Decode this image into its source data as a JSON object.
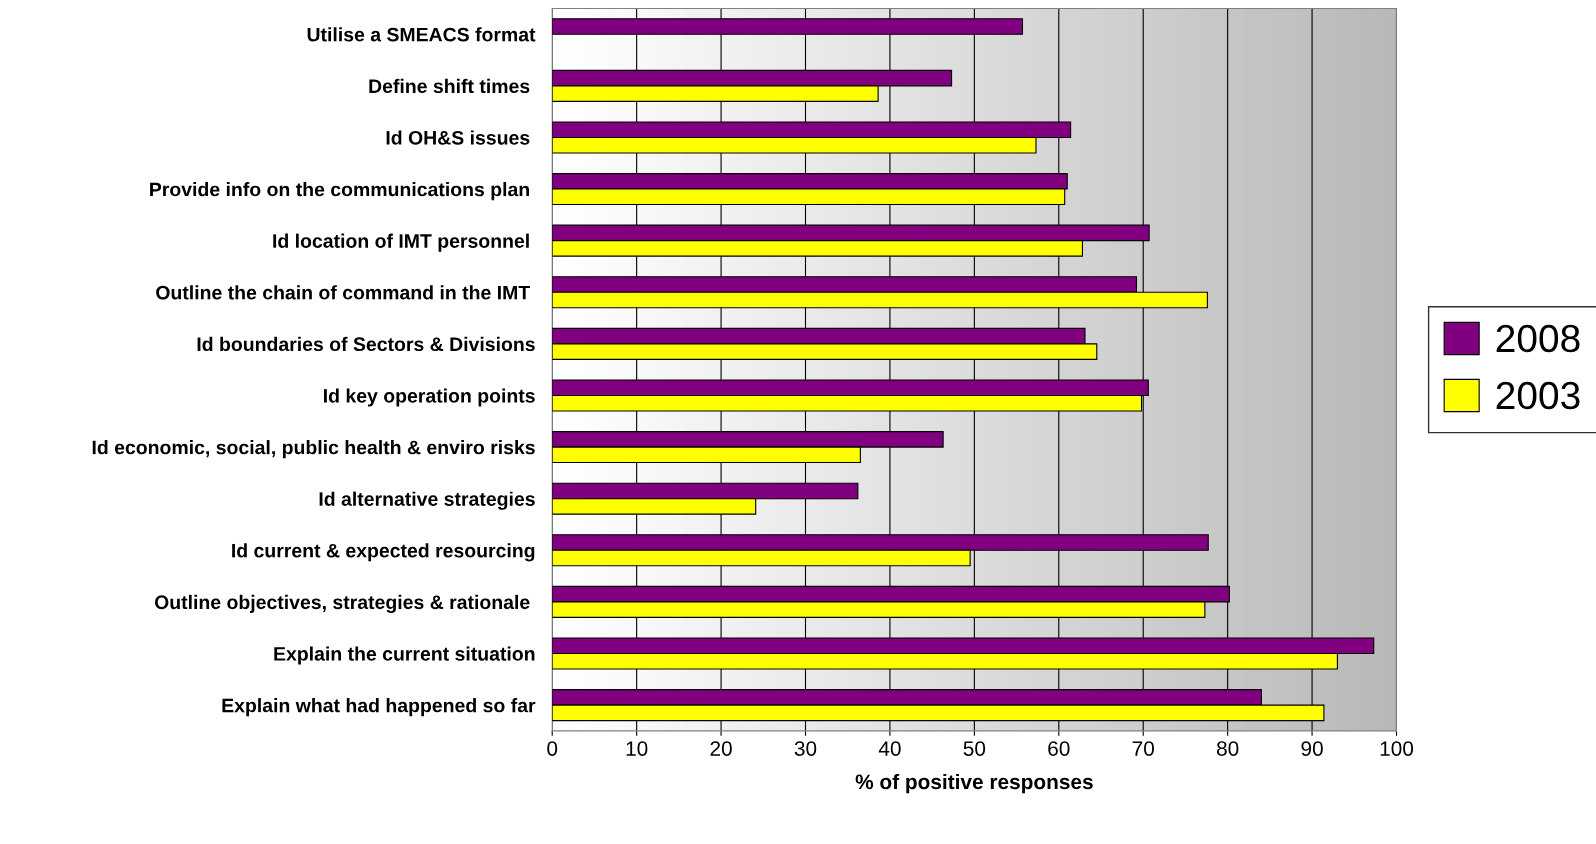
{
  "chart_data": {
    "type": "bar",
    "orientation": "horizontal",
    "xlabel": "% of positive responses",
    "categories": [
      "Utilise a SMEACS format",
      "Define shift times ",
      "Id OH&S issues ",
      "Provide info on the communications plan ",
      "Id location of IMT personnel ",
      "Outline the chain of command in the IMT ",
      "Id boundaries of Sectors & Divisions",
      "Id key operation points",
      "Id economic, social, public health & enviro risks",
      "Id alternative strategies",
      "Id current & expected resourcing",
      "Outline objectives, strategies & rationale ",
      "Explain the current situation",
      "Explain what had happened so far"
    ],
    "series": [
      {
        "name": "2008",
        "color": "#800080",
        "values": [
          55.7,
          47.3,
          61.4,
          61.0,
          70.7,
          69.2,
          63.1,
          70.6,
          46.3,
          36.2,
          77.7,
          80.2,
          97.3,
          84.0
        ]
      },
      {
        "name": "2003",
        "color": "#ffff00",
        "values": [
          null,
          38.6,
          57.3,
          60.7,
          62.8,
          77.6,
          64.5,
          69.8,
          36.5,
          24.1,
          49.5,
          77.3,
          93.0,
          91.4
        ]
      }
    ],
    "xlim": [
      0,
      100
    ],
    "xticks": [
      0,
      10,
      20,
      30,
      40,
      50,
      60,
      70,
      80,
      90,
      100
    ],
    "grid": "x",
    "legend": "right"
  }
}
